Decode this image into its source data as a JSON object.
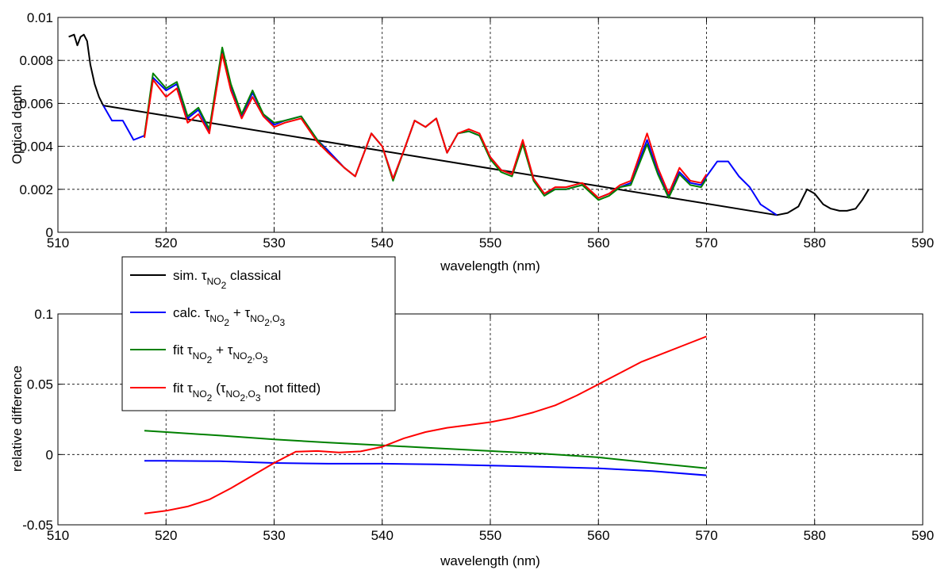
{
  "chart_data": [
    {
      "type": "line",
      "xlabel": "wavelength (nm)",
      "ylabel": "Optical depth",
      "xlim": [
        510,
        590
      ],
      "ylim": [
        0,
        0.01
      ],
      "xticks": [
        "510",
        "520",
        "530",
        "540",
        "550",
        "560",
        "570",
        "580",
        "590"
      ],
      "yticks": [
        "0",
        "0.002",
        "0.004",
        "0.006",
        "0.008",
        "0.01"
      ],
      "grid": true,
      "series": [
        {
          "name": "sim. τNO2 classical",
          "color": "#000000",
          "x": [
            511.0,
            511.5,
            511.8,
            512.1,
            512.4,
            512.7,
            513.0,
            513.4,
            513.8,
            514.2,
            576.5,
            577.5,
            578.5,
            579.3,
            580.0,
            580.8,
            581.5,
            582.3,
            583.0,
            583.8,
            584.4,
            585.0
          ],
          "y": [
            0.0091,
            0.0092,
            0.0087,
            0.0091,
            0.0092,
            0.0089,
            0.0078,
            0.0069,
            0.0063,
            0.0059,
            0.0008,
            0.0009,
            0.0012,
            0.002,
            0.0018,
            0.0013,
            0.0011,
            0.001,
            0.001,
            0.0011,
            0.0015,
            0.002
          ]
        },
        {
          "name": "calc. τNO2 + τNO2,O3",
          "color": "#0000ff",
          "x": [
            514.2,
            515.0,
            516.0,
            517.0,
            518.0,
            518.8,
            520.0,
            521.0,
            522.0,
            523.0,
            524.0,
            525.2,
            526.0,
            527.0,
            528.0,
            529.0,
            530.0,
            531.0,
            532.5,
            534.0,
            535.0,
            536.5,
            537.5,
            539.0,
            540.0,
            541.0,
            542.0,
            543.0,
            544.0,
            545.0,
            546.0,
            547.0,
            548.0,
            549.0,
            550.0,
            551.0,
            552.0,
            553.0,
            554.0,
            555.0,
            556.0,
            557.0,
            558.5,
            560.0,
            561.0,
            562.0,
            563.0,
            564.5,
            565.5,
            566.5,
            567.5,
            568.5,
            569.5,
            570.0,
            571.0,
            572.0,
            573.0,
            574.0,
            575.0,
            576.5
          ],
          "y": [
            0.0059,
            0.0052,
            0.0052,
            0.0043,
            0.0045,
            0.0072,
            0.0066,
            0.0069,
            0.0053,
            0.0057,
            0.0047,
            0.0085,
            0.0068,
            0.0054,
            0.0065,
            0.0055,
            0.005,
            0.0052,
            0.0054,
            0.0043,
            0.0038,
            0.003,
            0.0026,
            0.0046,
            0.004,
            0.0025,
            0.0038,
            0.0052,
            0.0049,
            0.0053,
            0.0037,
            0.0046,
            0.0047,
            0.0045,
            0.0035,
            0.0029,
            0.0027,
            0.0042,
            0.0025,
            0.0018,
            0.002,
            0.002,
            0.0022,
            0.0016,
            0.0018,
            0.0021,
            0.0023,
            0.0043,
            0.0028,
            0.0017,
            0.0028,
            0.0023,
            0.0022,
            0.0026,
            0.0033,
            0.0033,
            0.0026,
            0.0021,
            0.0013,
            0.0008
          ]
        },
        {
          "name": "fit τNO2 + τNO2,O3",
          "color": "#008000",
          "x": [
            518.0,
            518.8,
            520.0,
            521.0,
            522.0,
            523.0,
            524.0,
            525.2,
            526.0,
            527.0,
            528.0,
            529.0,
            530.0,
            531.0,
            532.5,
            534.0,
            535.0,
            536.5,
            537.5,
            539.0,
            540.0,
            541.0,
            542.0,
            543.0,
            544.0,
            545.0,
            546.0,
            547.0,
            548.0,
            549.0,
            550.0,
            551.0,
            552.0,
            553.0,
            554.0,
            555.0,
            556.0,
            557.0,
            558.5,
            560.0,
            561.0,
            562.0,
            563.0,
            564.5,
            565.5,
            566.5,
            567.5,
            568.5,
            569.5,
            570.0
          ],
          "y": [
            0.0045,
            0.0074,
            0.0067,
            0.007,
            0.0054,
            0.0058,
            0.0048,
            0.0086,
            0.0069,
            0.0055,
            0.0066,
            0.0055,
            0.0051,
            0.0052,
            0.0054,
            0.0043,
            0.0037,
            0.003,
            0.0026,
            0.0046,
            0.004,
            0.0024,
            0.0038,
            0.0052,
            0.0049,
            0.0053,
            0.0037,
            0.0046,
            0.0047,
            0.0045,
            0.0034,
            0.0028,
            0.0026,
            0.0041,
            0.0024,
            0.0017,
            0.002,
            0.002,
            0.0022,
            0.0015,
            0.0017,
            0.0021,
            0.0022,
            0.0041,
            0.0027,
            0.0016,
            0.0027,
            0.0022,
            0.0021,
            0.0025
          ]
        },
        {
          "name": "fit τNO2 (τNO2,O3 not fitted)",
          "color": "#ff0000",
          "x": [
            518.0,
            518.8,
            520.0,
            521.0,
            522.0,
            523.0,
            524.0,
            525.2,
            526.0,
            527.0,
            528.0,
            529.0,
            530.0,
            531.0,
            532.5,
            534.0,
            535.0,
            536.5,
            537.5,
            539.0,
            540.0,
            541.0,
            542.0,
            543.0,
            544.0,
            545.0,
            546.0,
            547.0,
            548.0,
            549.0,
            550.0,
            551.0,
            552.0,
            553.0,
            554.0,
            555.0,
            556.0,
            557.0,
            558.5,
            560.0,
            561.0,
            562.0,
            563.0,
            564.5,
            565.5,
            566.5,
            567.5,
            568.5,
            569.5,
            570.0
          ],
          "y": [
            0.0044,
            0.0071,
            0.0063,
            0.0067,
            0.0051,
            0.0055,
            0.0046,
            0.0083,
            0.0066,
            0.0053,
            0.0063,
            0.0054,
            0.0049,
            0.0051,
            0.0053,
            0.0042,
            0.0037,
            0.003,
            0.0026,
            0.0046,
            0.004,
            0.0025,
            0.0038,
            0.0052,
            0.0049,
            0.0053,
            0.0037,
            0.0046,
            0.0048,
            0.0046,
            0.0035,
            0.0029,
            0.0027,
            0.0043,
            0.0025,
            0.0018,
            0.0021,
            0.0021,
            0.0023,
            0.0016,
            0.0018,
            0.0022,
            0.0024,
            0.0046,
            0.003,
            0.0018,
            0.003,
            0.0024,
            0.0023,
            0.0027
          ]
        }
      ]
    },
    {
      "type": "line",
      "xlabel": "wavelength (nm)",
      "ylabel": "relative difference",
      "xlim": [
        510,
        590
      ],
      "ylim": [
        -0.05,
        0.1
      ],
      "xticks": [
        "510",
        "520",
        "530",
        "540",
        "550",
        "560",
        "570",
        "580",
        "590"
      ],
      "yticks": [
        "-0.05",
        "0",
        "0.05",
        "0.1"
      ],
      "grid": true,
      "legend": {
        "placement": "upper-left",
        "entries": [
          {
            "color": "#000000",
            "parts": [
              [
                "sim. ",
                ""
              ],
              [
                "τ",
                ""
              ],
              [
                "NO",
                "sub"
              ],
              [
                "2",
                "sub2"
              ],
              [
                " classical",
                ""
              ]
            ]
          },
          {
            "color": "#0000ff",
            "parts": [
              [
                "calc. ",
                ""
              ],
              [
                "τ",
                ""
              ],
              [
                "NO",
                "sub"
              ],
              [
                "2",
                "sub2"
              ],
              [
                " + ",
                ""
              ],
              [
                "τ",
                ""
              ],
              [
                "NO",
                "sub"
              ],
              [
                "2",
                "sub2"
              ],
              [
                ",O",
                "sub"
              ],
              [
                "3",
                "sub2"
              ]
            ]
          },
          {
            "color": "#008000",
            "parts": [
              [
                "fit ",
                ""
              ],
              [
                "τ",
                ""
              ],
              [
                "NO",
                "sub"
              ],
              [
                "2",
                "sub2"
              ],
              [
                " + ",
                ""
              ],
              [
                "τ",
                ""
              ],
              [
                "NO",
                "sub"
              ],
              [
                "2",
                "sub2"
              ],
              [
                ",O",
                "sub"
              ],
              [
                "3",
                "sub2"
              ]
            ]
          },
          {
            "color": "#ff0000",
            "parts": [
              [
                "fit ",
                ""
              ],
              [
                "τ",
                ""
              ],
              [
                "NO",
                "sub"
              ],
              [
                "2",
                "sub2"
              ],
              [
                " (",
                ""
              ],
              [
                "τ",
                ""
              ],
              [
                "NO",
                "sub"
              ],
              [
                "2",
                "sub2"
              ],
              [
                ",O",
                "sub"
              ],
              [
                "3",
                "sub2"
              ],
              [
                " not fitted)",
                ""
              ]
            ]
          }
        ]
      },
      "series": [
        {
          "name": "calc. τNO2 + τNO2,O3",
          "color": "#0000ff",
          "x": [
            518,
            520,
            525,
            530,
            535,
            540,
            545,
            550,
            555,
            560,
            565,
            570
          ],
          "y": [
            -0.0045,
            -0.0045,
            -0.0048,
            -0.006,
            -0.0065,
            -0.0065,
            -0.007,
            -0.0078,
            -0.0088,
            -0.0098,
            -0.0118,
            -0.0148
          ]
        },
        {
          "name": "fit τNO2 + τNO2,O3",
          "color": "#008000",
          "x": [
            518,
            520,
            525,
            530,
            535,
            540,
            545,
            550,
            555,
            560,
            565,
            570
          ],
          "y": [
            0.017,
            0.016,
            0.0135,
            0.0108,
            0.0085,
            0.0065,
            0.0045,
            0.0025,
            0.0005,
            -0.002,
            -0.006,
            -0.0098
          ]
        },
        {
          "name": "fit τNO2 (τNO2,O3 not fitted)",
          "color": "#ff0000",
          "x": [
            518,
            520,
            522,
            524,
            526,
            528,
            530,
            532,
            534,
            536,
            538,
            540,
            542,
            544,
            546,
            548,
            550,
            552,
            554,
            556,
            558,
            560,
            562,
            564,
            566,
            568,
            570
          ],
          "y": [
            -0.042,
            -0.04,
            -0.037,
            -0.032,
            -0.024,
            -0.015,
            -0.006,
            0.002,
            0.0025,
            0.0015,
            0.0022,
            0.0055,
            0.0115,
            0.016,
            0.019,
            0.021,
            0.023,
            0.026,
            0.03,
            0.035,
            0.042,
            0.05,
            0.058,
            0.066,
            0.072,
            0.078,
            0.084
          ]
        }
      ]
    }
  ]
}
